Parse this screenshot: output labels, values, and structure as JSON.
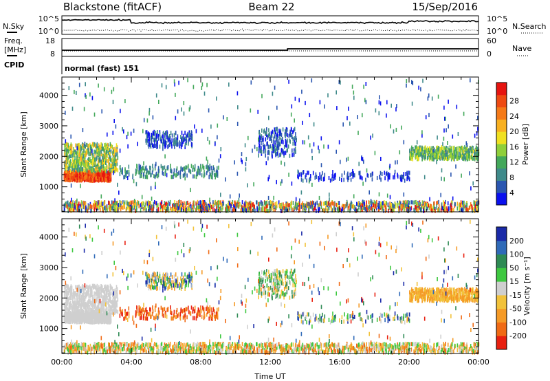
{
  "header": {
    "station": "Blackstone (fitACF)",
    "beam": "Beam 22",
    "date": "15/Sep/2016"
  },
  "noise_panel": {
    "left_label": "N.Sky",
    "right_label": "N.Search",
    "left_ticks": [
      "10^5",
      "10^0"
    ],
    "right_ticks": [
      "10^5",
      "10^0"
    ]
  },
  "freq_panel": {
    "left_label_line1": "Freq.",
    "left_label_line2": "[MHz]",
    "right_label": "Nave",
    "left_ticks": [
      "18",
      "8"
    ],
    "right_ticks": [
      "60",
      "0"
    ],
    "cpid_label": "CPID",
    "cpid_text": "normal (fast) 151"
  },
  "chart_data": [
    {
      "type": "heatmap",
      "parameter": "power",
      "xlabel": "Time UT",
      "ylabel": "Slant Range [km]",
      "xticks": [
        "00:00",
        "04:00",
        "08:00",
        "12:00",
        "16:00",
        "20:00",
        "00:00"
      ],
      "yticks": [
        "1000",
        "2000",
        "3000",
        "4000"
      ],
      "ylim": [
        180,
        4600
      ],
      "colorbar_label": "Power [dB]",
      "colorbar_ticks": [
        "4",
        "8",
        "12",
        "16",
        "20",
        "24",
        "28"
      ],
      "colorbar_colors": [
        "#0a10ee",
        "#2a56b0",
        "#3f8a8a",
        "#43a85a",
        "#8fcf3a",
        "#f0e020",
        "#f8b020",
        "#f57a18",
        "#ee4a12",
        "#e61410"
      ]
    },
    {
      "type": "heatmap",
      "parameter": "velocity",
      "xlabel": "Time UT",
      "ylabel": "Slant Range [km]",
      "xticks": [
        "00:00",
        "04:00",
        "08:00",
        "12:00",
        "16:00",
        "20:00",
        "00:00"
      ],
      "yticks": [
        "1000",
        "2000",
        "3000",
        "4000"
      ],
      "ylim": [
        180,
        4600
      ],
      "colorbar_label": "Velocity [m s⁻¹]",
      "colorbar_ticks": [
        "200",
        "100",
        "50",
        "15",
        "-15",
        "-50",
        "-100",
        "-200"
      ],
      "colorbar_colors": [
        "#1a2aa8",
        "#2f6ab8",
        "#2e8a54",
        "#3ec840",
        "#cfcfcf",
        "#f2c23a",
        "#f59a26",
        "#f06a14",
        "#e82010"
      ]
    }
  ]
}
